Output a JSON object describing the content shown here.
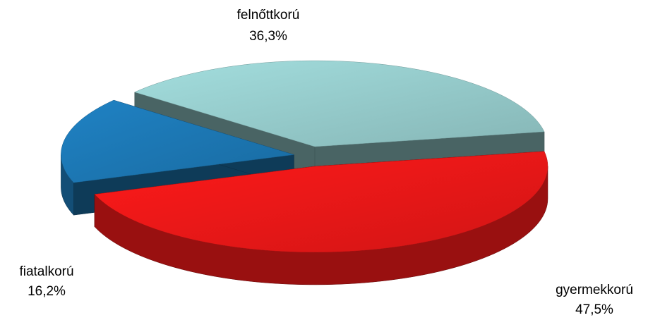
{
  "chart_data": {
    "type": "pie3d",
    "categories": [
      "gyermekkorú",
      "fiatalkorú",
      "felnőttkorú"
    ],
    "values": [
      47.5,
      16.2,
      36.3
    ],
    "value_labels": [
      "47,5%",
      "16,2%",
      "36,3%"
    ],
    "colors": [
      "#ff1a1a",
      "#1f82c4",
      "#a3dede"
    ]
  }
}
